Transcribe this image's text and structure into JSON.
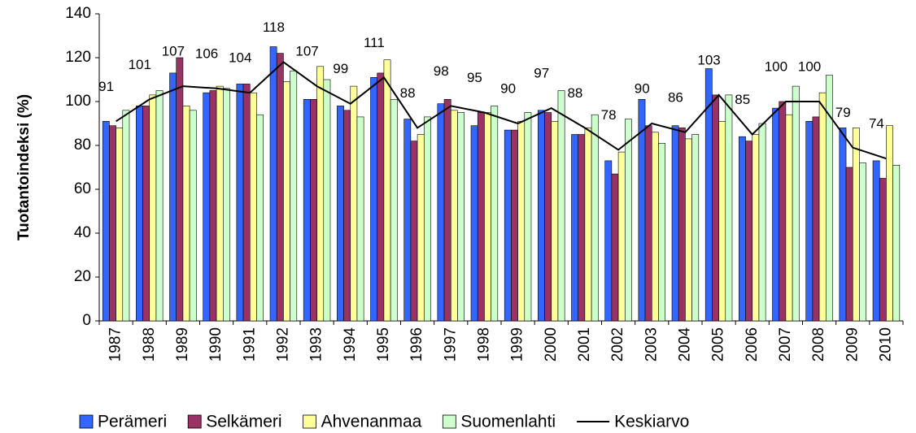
{
  "chart_data": {
    "type": "bar",
    "y_label": "Tuotantoindeksi (%)",
    "categories": [
      "1987",
      "1988",
      "1989",
      "1990",
      "1991",
      "1992",
      "1993",
      "1994",
      "1995",
      "1996",
      "1997",
      "1998",
      "1999",
      "2000",
      "2001",
      "2002",
      "2003",
      "2004",
      "2005",
      "2006",
      "2007",
      "2008",
      "2009",
      "2010"
    ],
    "series": [
      {
        "name": "Perämeri",
        "color": "#3366ff",
        "values": [
          91,
          98,
          113,
          104,
          108,
          125,
          101,
          98,
          111,
          92,
          99,
          89,
          87,
          96,
          85,
          73,
          101,
          89,
          115,
          84,
          97,
          91,
          88,
          73
        ]
      },
      {
        "name": "Selkämeri",
        "color": "#993366",
        "values": [
          89,
          98,
          120,
          105,
          108,
          122,
          101,
          96,
          113,
          82,
          101,
          95,
          87,
          95,
          85,
          67,
          89,
          88,
          103,
          82,
          100,
          93,
          70,
          65
        ]
      },
      {
        "name": "Ahvenanmaa",
        "color": "#ffff99",
        "values": [
          88,
          103,
          98,
          107,
          104,
          109,
          116,
          107,
          119,
          85,
          96,
          95,
          91,
          91,
          88,
          77,
          86,
          83,
          91,
          85,
          94,
          104,
          88,
          89
        ]
      },
      {
        "name": "Suomenlahti",
        "color": "#ccffcc",
        "values": [
          96,
          105,
          96,
          106,
          94,
          114,
          110,
          93,
          101,
          93,
          95,
          98,
          95,
          105,
          94,
          92,
          81,
          85,
          103,
          90,
          107,
          112,
          72,
          71
        ]
      },
      {
        "name": "Keskiarvo",
        "type": "line",
        "color": "#000000",
        "values": [
          91,
          101,
          107,
          106,
          104,
          118,
          107,
          99,
          111,
          88,
          98,
          95,
          90,
          97,
          88,
          78,
          90,
          86,
          103,
          85,
          100,
          100,
          79,
          74
        ]
      }
    ],
    "ylim": [
      0,
      140
    ],
    "yticks": [
      0,
      20,
      40,
      60,
      80,
      100,
      120,
      140
    ],
    "grid": false
  }
}
